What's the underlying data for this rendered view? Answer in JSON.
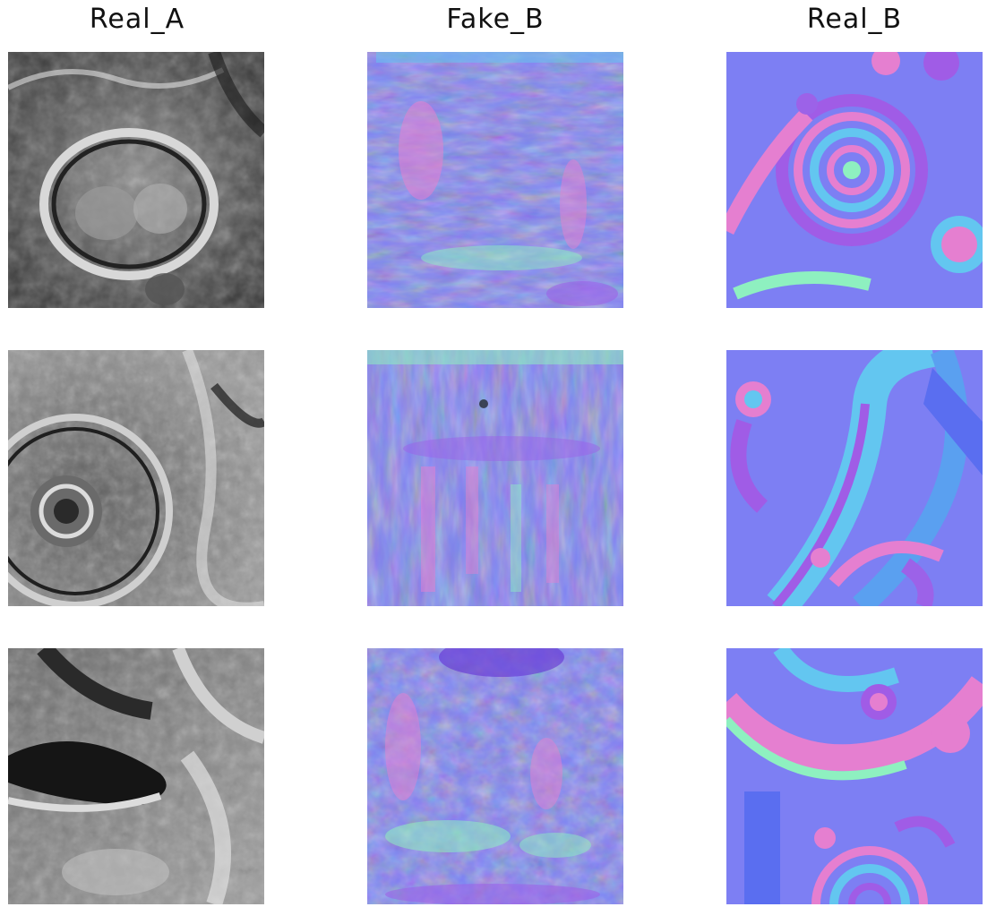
{
  "columns": [
    {
      "title": "Real_A"
    },
    {
      "title": "Fake_B"
    },
    {
      "title": "Real_B"
    }
  ],
  "rows": [
    {
      "panels": [
        {
          "column": "Real_A",
          "content": "grayscale-relief-texture"
        },
        {
          "column": "Fake_B",
          "content": "generated-normal-map"
        },
        {
          "column": "Real_B",
          "content": "ground-truth-normal-map"
        }
      ]
    },
    {
      "panels": [
        {
          "column": "Real_A",
          "content": "grayscale-relief-texture"
        },
        {
          "column": "Fake_B",
          "content": "generated-normal-map"
        },
        {
          "column": "Real_B",
          "content": "ground-truth-normal-map"
        }
      ]
    },
    {
      "panels": [
        {
          "column": "Real_A",
          "content": "grayscale-relief-texture"
        },
        {
          "column": "Fake_B",
          "content": "generated-normal-map"
        },
        {
          "column": "Real_B",
          "content": "ground-truth-normal-map"
        }
      ]
    }
  ],
  "colors": {
    "normal_map_base": "#7d7ff3",
    "normal_map_pink": "#e57fd0",
    "normal_map_green": "#8ef0c0",
    "normal_map_cyan": "#63c6f0",
    "normal_map_violet": "#9c62e8",
    "grayscale_dark": "#1a1a1a",
    "grayscale_light": "#d8d8d8"
  }
}
